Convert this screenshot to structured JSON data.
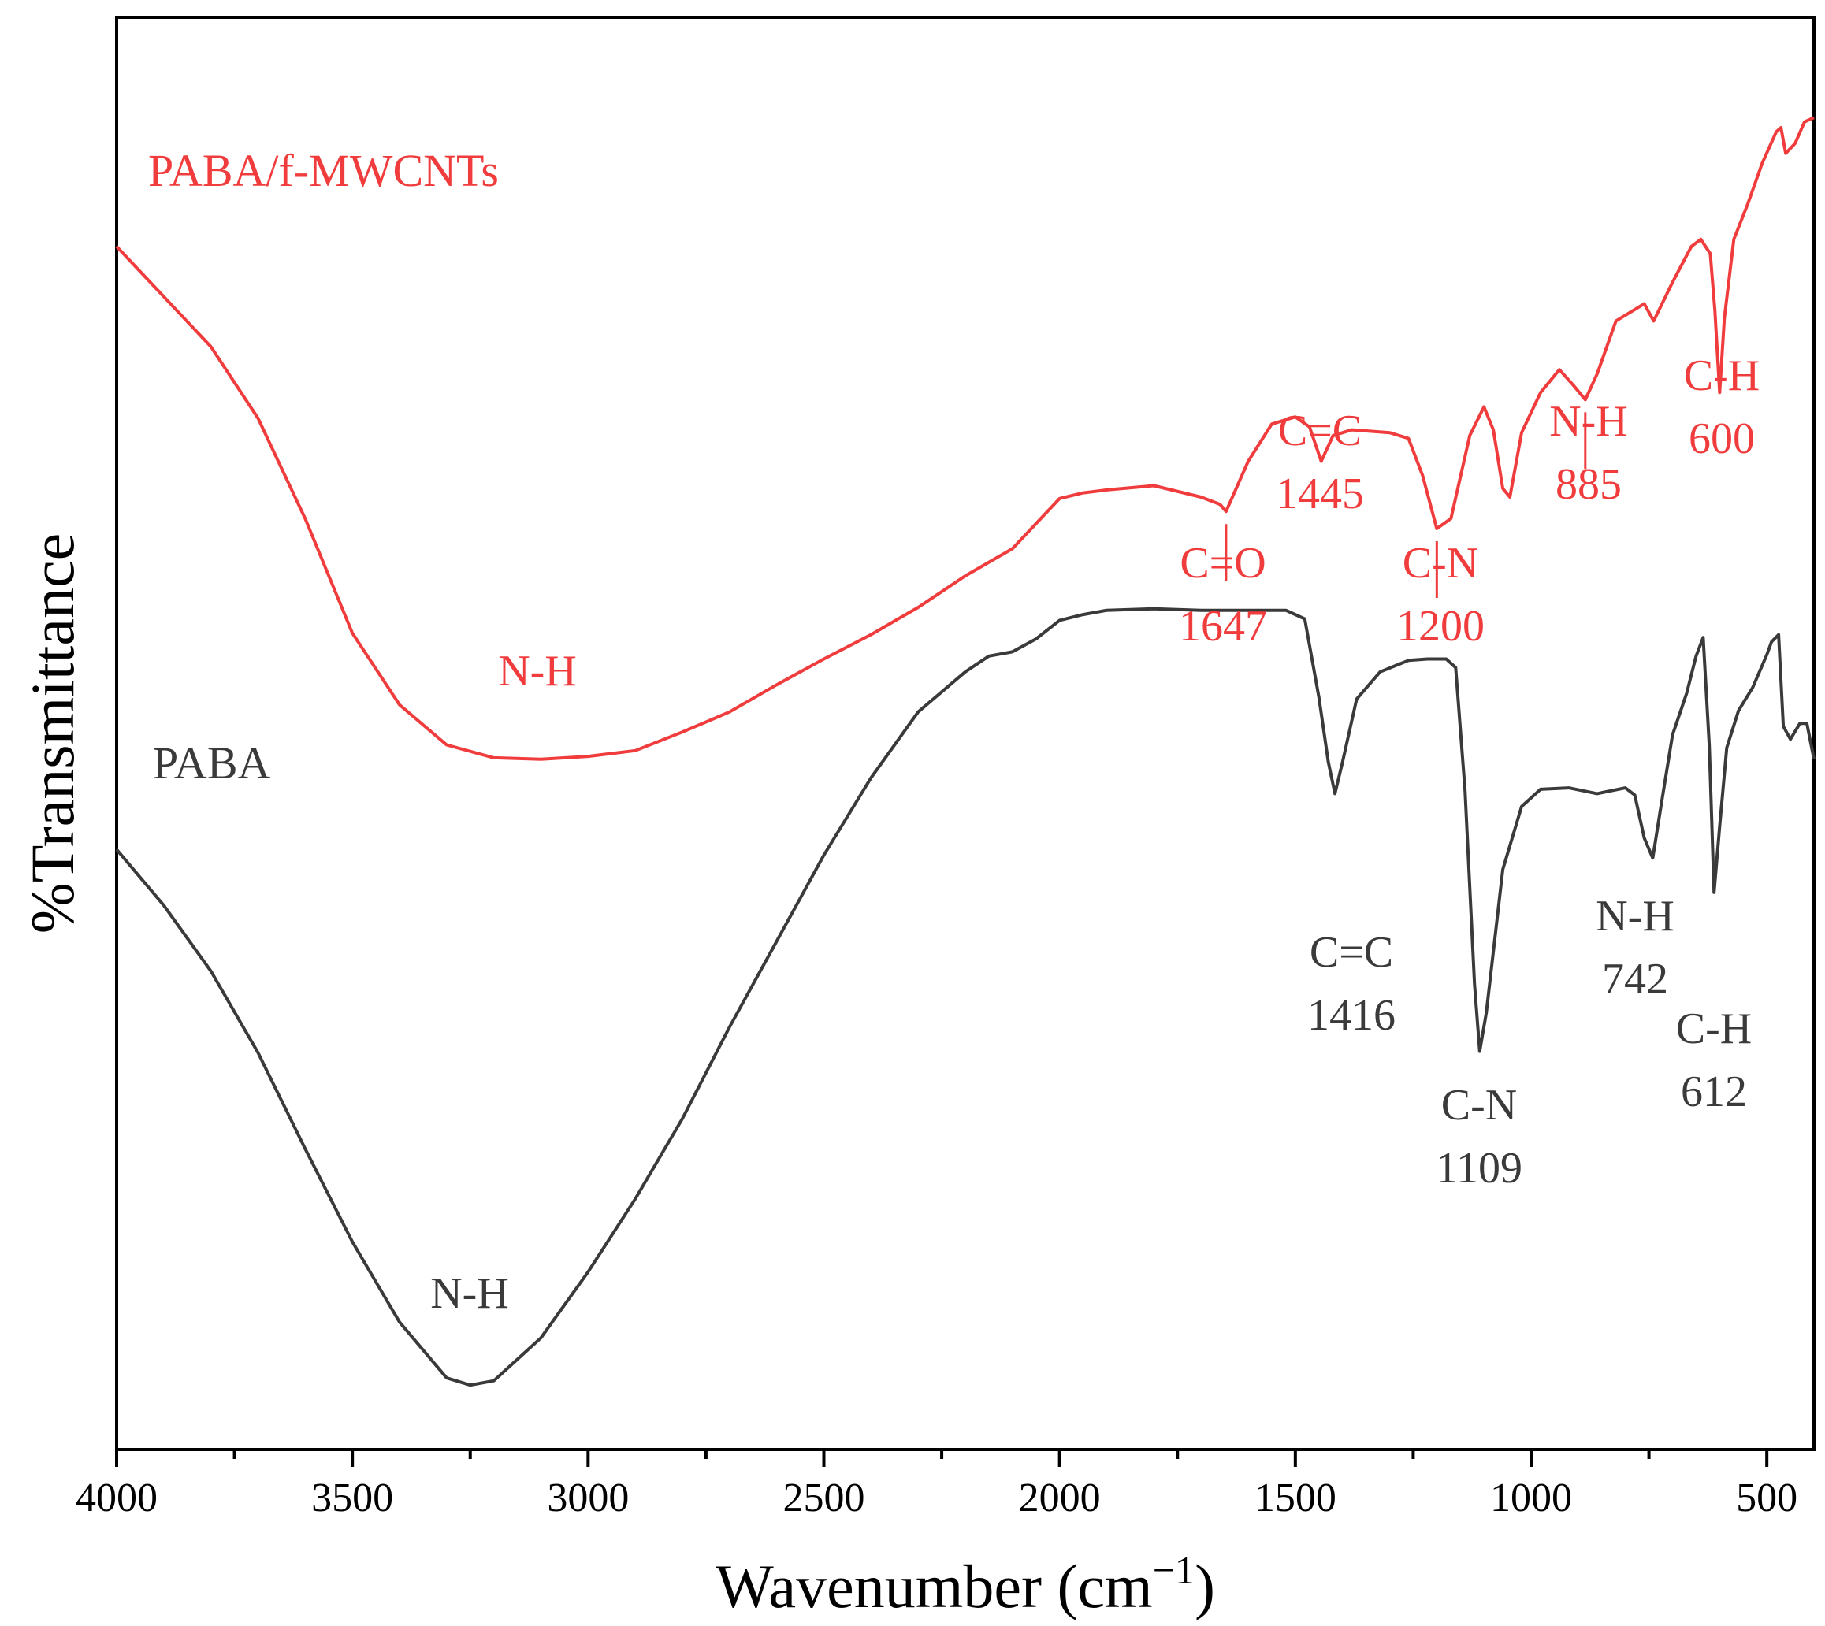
{
  "chart_data": {
    "type": "line",
    "title": "",
    "xlabel_main": "Wavenumber (cm",
    "xlabel_sup": "−1",
    "xlabel_close": ")",
    "ylabel": "%Transmittance",
    "xlim": [
      4000,
      400
    ],
    "x_reversed": true,
    "ylim": [
      0,
      100
    ],
    "y_ticks_shown": false,
    "grid": false,
    "x_ticks": [
      4000,
      3500,
      3000,
      2500,
      2000,
      1500,
      1000,
      500
    ],
    "x_tick_labels": [
      "4000",
      "3500",
      "3000",
      "2500",
      "2000",
      "1500",
      "1000",
      "500"
    ],
    "series": [
      {
        "name": "PABA/f-MWCNTs",
        "color": "#f03c3c",
        "x": [
          4000,
          3900,
          3800,
          3700,
          3600,
          3500,
          3400,
          3300,
          3200,
          3100,
          3000,
          2900,
          2800,
          2700,
          2600,
          2500,
          2400,
          2300,
          2200,
          2100,
          2000,
          1950,
          1900,
          1800,
          1700,
          1660,
          1647,
          1600,
          1550,
          1500,
          1470,
          1445,
          1420,
          1380,
          1300,
          1260,
          1230,
          1200,
          1170,
          1130,
          1100,
          1080,
          1060,
          1045,
          1020,
          980,
          940,
          910,
          885,
          860,
          820,
          760,
          740,
          700,
          660,
          640,
          620,
          610,
          600,
          590,
          570,
          540,
          510,
          480,
          470,
          460,
          440,
          420,
          400
        ],
        "y": [
          84,
          80.5,
          77,
          72,
          65,
          57,
          52,
          49.2,
          48.3,
          48.2,
          48.4,
          48.8,
          50.1,
          51.5,
          53.4,
          55.2,
          56.9,
          58.8,
          61,
          62.9,
          66.4,
          66.8,
          67,
          67.3,
          66.5,
          66,
          65.5,
          69,
          71.6,
          72.1,
          71.4,
          69,
          70.8,
          71.2,
          71,
          70.6,
          68,
          64.3,
          65,
          70.8,
          72.8,
          71.2,
          67.1,
          66.5,
          71,
          73.8,
          75.4,
          74.3,
          73.3,
          75.1,
          78.8,
          80,
          78.8,
          81.5,
          84,
          84.5,
          83.5,
          79.5,
          73.8,
          79,
          84.5,
          87,
          89.8,
          92,
          92.3,
          90.5,
          91.2,
          92.7,
          93
        ]
      },
      {
        "name": "PABA",
        "color": "#3a3a3a",
        "x": [
          4000,
          3900,
          3800,
          3700,
          3600,
          3500,
          3400,
          3300,
          3250,
          3200,
          3100,
          3000,
          2900,
          2800,
          2700,
          2600,
          2500,
          2400,
          2300,
          2200,
          2150,
          2100,
          2050,
          2000,
          1950,
          1900,
          1800,
          1700,
          1600,
          1520,
          1480,
          1450,
          1430,
          1416,
          1400,
          1370,
          1320,
          1260,
          1220,
          1180,
          1160,
          1140,
          1120,
          1109,
          1095,
          1060,
          1020,
          980,
          920,
          860,
          800,
          780,
          760,
          742,
          725,
          700,
          670,
          650,
          635,
          622,
          612,
          600,
          585,
          560,
          530,
          500,
          490,
          475,
          465,
          450,
          430,
          415,
          400
        ],
        "y": [
          41.9,
          38,
          33.4,
          27.7,
          21,
          14.5,
          8.9,
          5,
          4.5,
          4.8,
          7.8,
          12.4,
          17.5,
          23.1,
          29.5,
          35.5,
          41.5,
          46.9,
          51.5,
          54.3,
          55.4,
          55.7,
          56.6,
          57.9,
          58.3,
          58.6,
          58.7,
          58.6,
          58.6,
          58.6,
          58,
          52.5,
          48,
          45.8,
          48,
          52.4,
          54.3,
          55.1,
          55.2,
          55.2,
          54.6,
          46,
          32.5,
          27.8,
          30.5,
          40.5,
          44.9,
          46.1,
          46.2,
          45.8,
          46.2,
          45.7,
          42.7,
          41.3,
          44.8,
          49.9,
          52.8,
          55.4,
          56.7,
          49.1,
          38.9,
          43.5,
          49,
          51.6,
          53.2,
          55.5,
          56.4,
          56.9,
          50.5,
          49.6,
          50.7,
          50.7,
          48.2
        ]
      }
    ],
    "series_labels": [
      {
        "text": "PABA/f-MWCNTs",
        "series": 0
      },
      {
        "text": "PABA",
        "series": 1
      }
    ],
    "annotations": [
      {
        "series": 0,
        "text": "N-H",
        "wn": ""
      },
      {
        "series": 0,
        "text": "C=O",
        "wn": "1647"
      },
      {
        "series": 0,
        "text": "C=C",
        "wn": "1445"
      },
      {
        "series": 0,
        "text": "C-N",
        "wn": "1200"
      },
      {
        "series": 0,
        "text": "N-H",
        "wn": "885"
      },
      {
        "series": 0,
        "text": "C-H",
        "wn": "600"
      },
      {
        "series": 1,
        "text": "N-H",
        "wn": ""
      },
      {
        "series": 1,
        "text": "C=C",
        "wn": "1416"
      },
      {
        "series": 1,
        "text": "C-N",
        "wn": "1109"
      },
      {
        "series": 1,
        "text": "N-H",
        "wn": "742"
      },
      {
        "series": 1,
        "text": "C-H",
        "wn": "612"
      }
    ],
    "leader_lines_at": [
      1647,
      1200,
      885
    ]
  }
}
